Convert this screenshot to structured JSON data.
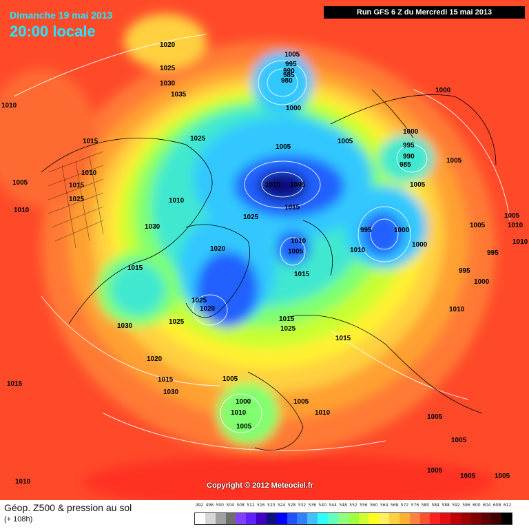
{
  "header": {
    "date": "Dimanche 19 mai 2013",
    "time": "20:00 locale",
    "run": "Run GFS 6 Z du Mercredi 15 mai 2013"
  },
  "copyright": "Copyright © 2012 Meteociel.fr",
  "footer": {
    "title": "Géop. Z500 & pression au sol",
    "subtitle": "(+ 108h)"
  },
  "scale": {
    "values": [
      "492",
      "496",
      "500",
      "504",
      "508",
      "512",
      "516",
      "520",
      "524",
      "528",
      "532",
      "536",
      "540",
      "544",
      "548",
      "552",
      "556",
      "560",
      "564",
      "568",
      "572",
      "576",
      "580",
      "584",
      "588",
      "592",
      "596",
      "600",
      "604",
      "608",
      "612"
    ],
    "colors": [
      "#ffffff",
      "#d7d7d7",
      "#a0a0a0",
      "#6e6e6e",
      "#8040ff",
      "#6020ff",
      "#4000c0",
      "#101080",
      "#0000ff",
      "#2050ff",
      "#3080ff",
      "#40c0ff",
      "#30ffff",
      "#60ffc0",
      "#90ff80",
      "#a0ff40",
      "#d0ff30",
      "#ffff20",
      "#fff060",
      "#ffd040",
      "#ffb030",
      "#ff8040",
      "#ff5030",
      "#ff2020",
      "#e01010",
      "#c00000",
      "#a00000",
      "#800000",
      "#600000",
      "#400000",
      "#000000"
    ]
  },
  "pressure_labels": [
    "1015",
    "1020",
    "1025",
    "1030",
    "1035",
    "1010",
    "1005",
    "1000",
    "995",
    "990",
    "985",
    "980",
    "1005",
    "1000",
    "995",
    "990",
    "985",
    "1005",
    "1010",
    "1005",
    "1015",
    "1025",
    "1005",
    "1000",
    "1000",
    "995",
    "990",
    "985",
    "1005",
    "1010",
    "1005",
    "1015",
    "1025",
    "995",
    "1000",
    "1005",
    "1010",
    "1020",
    "1015",
    "1025",
    "1020",
    "1025",
    "1015",
    "1030",
    "1025",
    "1015",
    "1025",
    "1030",
    "1015",
    "1020",
    "1005",
    "1000",
    "1010",
    "1010",
    "1010",
    "1005",
    "1005",
    "1005",
    "1005",
    "1010",
    "1010",
    "1005",
    "1000",
    "1005",
    "1005",
    "1005",
    "1005",
    "995",
    "995",
    "1000",
    "1010",
    "1005",
    "1010",
    "1005",
    "1005",
    "1010"
  ]
}
